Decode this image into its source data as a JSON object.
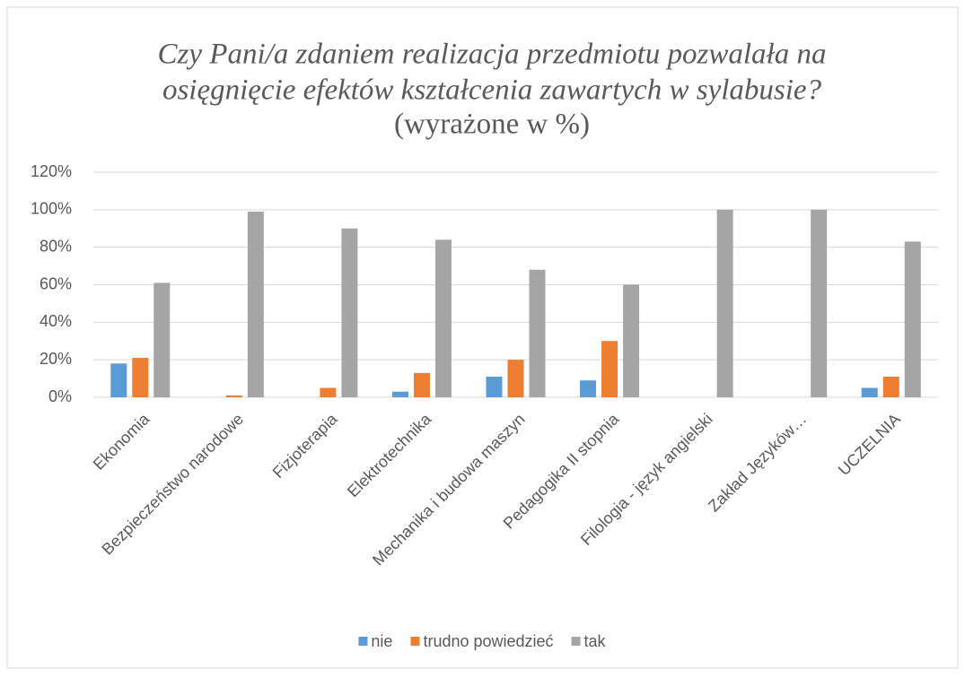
{
  "chart_data": {
    "type": "bar",
    "title": [
      "Czy Pani/a zdaniem realizacja przedmiotu pozwalała na",
      "osięgnięcie efektów kształcenia zawartych w sylabusie?"
    ],
    "subtitle": "(wyrażone  w %)",
    "categories": [
      "Ekonomia",
      "Bezpieczeństwo narodowe",
      "Fizjoterapia",
      "Elektrotechnika",
      "Mechanika i budowa maszyn",
      "Pedagogika II stopnia",
      "Filologia - język angielski",
      "Zakład Języków…",
      "UCZELNIA"
    ],
    "series": [
      {
        "name": "nie",
        "color": "#5b9bd5",
        "values": [
          18,
          0,
          0,
          3,
          11,
          9,
          0,
          0,
          5
        ]
      },
      {
        "name": "trudno powiedzieć",
        "color": "#ed7d31",
        "values": [
          21,
          1,
          5,
          13,
          20,
          30,
          0,
          0,
          11
        ]
      },
      {
        "name": "tak",
        "color": "#a5a5a5",
        "values": [
          61,
          99,
          90,
          84,
          68,
          60,
          100,
          100,
          83
        ]
      }
    ],
    "ylim": [
      0,
      120
    ],
    "yticks": [
      {
        "value": 0,
        "label": "0%"
      },
      {
        "value": 20,
        "label": "20%"
      },
      {
        "value": 40,
        "label": "40%"
      },
      {
        "value": 60,
        "label": "60%"
      },
      {
        "value": 80,
        "label": "80%"
      },
      {
        "value": 100,
        "label": "100%"
      },
      {
        "value": 120,
        "label": "120%"
      }
    ],
    "grid": true,
    "legend": "bottom"
  }
}
